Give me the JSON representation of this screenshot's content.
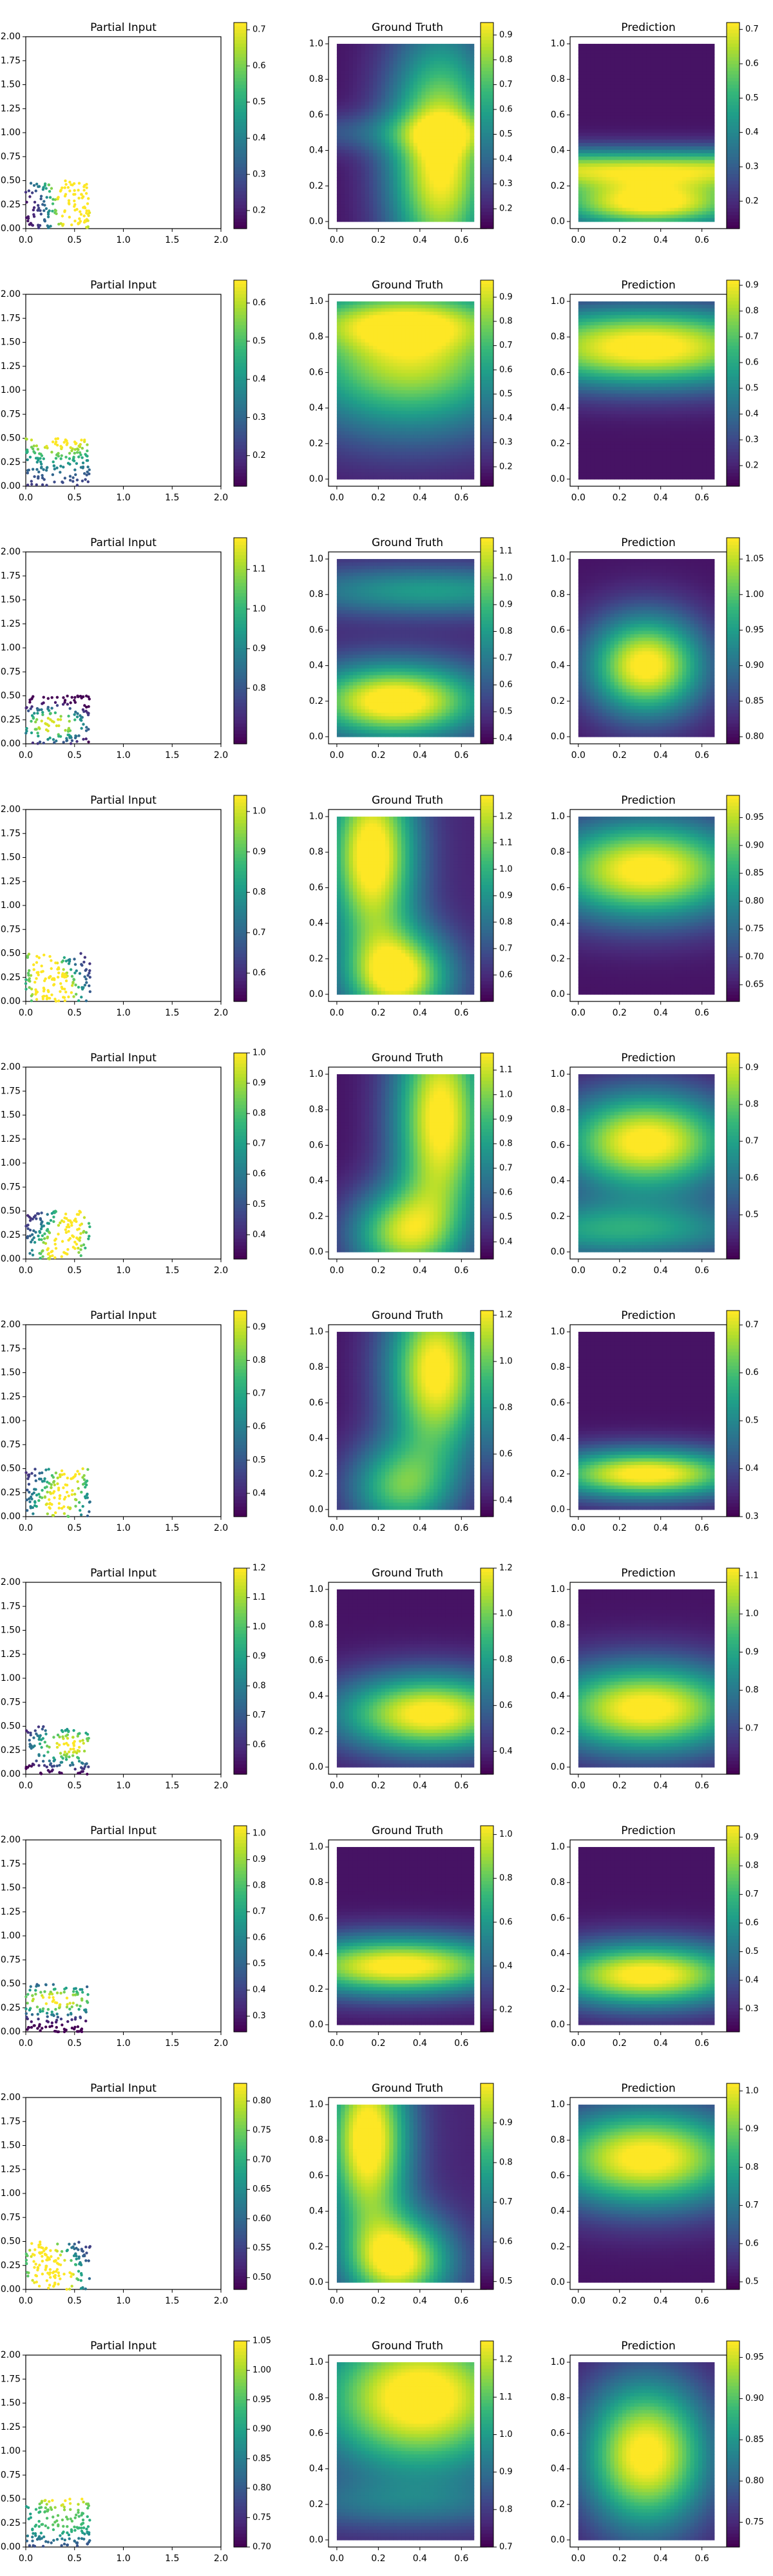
{
  "chart_data": {
    "type": "heatmap",
    "figure_layout": "10 rows x 3 panels: scatter + 2 heatmaps, each with colorbar",
    "colormap": "viridis",
    "colormap_stops": [
      "#440154",
      "#482878",
      "#3e4989",
      "#31688e",
      "#26828e",
      "#1f9e89",
      "#35b779",
      "#6ece58",
      "#b5de2b",
      "#fde725"
    ],
    "panel_titles": {
      "partial": "Partial Input",
      "truth": "Ground Truth",
      "prediction": "Prediction"
    },
    "partial_axes": {
      "xlim": [
        0,
        2
      ],
      "ylim": [
        0,
        2
      ],
      "xticks": [
        "0.0",
        "0.5",
        "1.0",
        "1.5",
        "2.0"
      ],
      "yticks": [
        "0.00",
        "0.25",
        "0.50",
        "0.75",
        "1.00",
        "1.25",
        "1.50",
        "1.75",
        "2.00"
      ],
      "scatter_region": {
        "x": [
          0,
          0.66
        ],
        "y": [
          0,
          0.5
        ]
      }
    },
    "heat_axes": {
      "xlim": [
        -0.04,
        0.72
      ],
      "ylim": [
        -0.04,
        1.04
      ],
      "xticks": [
        "0.0",
        "0.2",
        "0.4",
        "0.6"
      ],
      "yticks": [
        "0.0",
        "0.2",
        "0.4",
        "0.6",
        "0.8",
        "1.0"
      ]
    },
    "rows": [
      {
        "partial": {
          "range": [
            0.15,
            0.72
          ],
          "ticks": [
            "0.2",
            "0.3",
            "0.4",
            "0.5",
            "0.6",
            "0.7"
          ]
        },
        "truth": {
          "range": [
            0.12,
            0.95
          ],
          "ticks": [
            "0.2",
            "0.3",
            "0.4",
            "0.5",
            "0.6",
            "0.7",
            "0.8",
            "0.9"
          ],
          "field": [
            [
              0.05,
              0.5,
              0.35,
              1.0,
              0.18,
              0.2,
              0.8
            ],
            [
              0.5,
              0.5,
              0.4,
              0.0,
              0.35,
              0.4,
              0.2
            ]
          ]
        },
        "prediction": {
          "range": [
            0.12,
            0.72
          ],
          "ticks": [
            "0.1",
            "0.2",
            "0.3",
            "0.4",
            "0.5",
            "0.6",
            "0.7"
          ],
          "field": [
            [
              0.05,
              0.35,
              0.1,
              1.0,
              0.35,
              0.1,
              0.0
            ],
            [
              0.85,
              0.3,
              0.88,
              0.0,
              0.5,
              0.18,
              0.8
            ]
          ]
        }
      },
      {
        "partial": {
          "range": [
            0.12,
            0.66
          ],
          "ticks": [
            "0.2",
            "0.3",
            "0.4",
            "0.5",
            "0.6"
          ]
        },
        "truth": {
          "range": [
            0.12,
            0.97
          ],
          "ticks": [
            "0.2",
            "0.3",
            "0.4",
            "0.5",
            "0.6",
            "0.7",
            "0.8",
            "0.9"
          ],
          "field": [
            [
              0.05,
              0.35,
              0.7,
              0.9,
              0.4,
              0.15,
              0.3
            ],
            [
              0.25,
              0.3,
              0.88,
              0.35,
              0.5,
              0.1,
              0.0
            ]
          ]
        },
        "prediction": {
          "range": [
            0.12,
            0.92
          ],
          "ticks": [
            "0.2",
            "0.3",
            "0.4",
            "0.5",
            "0.6",
            "0.7",
            "0.8",
            "0.9"
          ],
          "field": [
            [
              0.05,
              0.33,
              0.72,
              0.95,
              0.5,
              0.15,
              0.0
            ],
            [
              0.3,
              0.33,
              0.88,
              0.2,
              0.5,
              0.1,
              0.0
            ]
          ]
        }
      },
      {
        "partial": {
          "range": [
            0.66,
            1.18
          ],
          "ticks": [
            "0.8",
            "0.9",
            "1.0",
            "1.1"
          ]
        },
        "truth": {
          "range": [
            0.38,
            1.15
          ],
          "ticks": [
            "0.4",
            "0.5",
            "0.6",
            "0.7",
            "0.8",
            "0.9",
            "1.0",
            "1.1"
          ],
          "field": [
            [
              0.1,
              0.28,
              0.2,
              1.0,
              0.3,
              0.15,
              0.0
            ],
            [
              0.45,
              0.1,
              0.82,
              0.5,
              0.5,
              0.1,
              0.0
            ]
          ]
        },
        "prediction": {
          "range": [
            0.79,
            1.08
          ],
          "ticks": [
            "0.80",
            "0.85",
            "0.90",
            "0.95",
            "1.00",
            "1.05"
          ],
          "field": [
            [
              0.05,
              0.33,
              0.4,
              1.0,
              0.2,
              0.2,
              0.0
            ],
            [
              0.5,
              0.5,
              0.5,
              0.0,
              0.5,
              0.1,
              0.0
            ]
          ]
        }
      },
      {
        "partial": {
          "range": [
            0.53,
            1.04
          ],
          "ticks": [
            "0.6",
            "0.7",
            "0.8",
            "0.9",
            "1.0"
          ]
        },
        "truth": {
          "range": [
            0.5,
            1.28
          ],
          "ticks": [
            "0.6",
            "0.7",
            "0.8",
            "0.9",
            "1.0",
            "1.1",
            "1.2"
          ],
          "field": [
            [
              0.1,
              0.17,
              0.78,
              1.0,
              0.15,
              0.15,
              0.45
            ],
            [
              0.3,
              0.55,
              0.1,
              1.0,
              0.18,
              0.18,
              0.0
            ]
          ]
        },
        "prediction": {
          "range": [
            0.62,
            0.99
          ],
          "ticks": [
            "0.65",
            "0.70",
            "0.75",
            "0.80",
            "0.85",
            "0.90",
            "0.95"
          ],
          "field": [
            [
              0.05,
              0.33,
              0.7,
              1.0,
              0.35,
              0.2,
              0.0
            ],
            [
              0.5,
              0.5,
              0.5,
              0.0,
              0.5,
              0.1,
              0.0
            ]
          ]
        }
      },
      {
        "partial": {
          "range": [
            0.32,
            1.0
          ],
          "ticks": [
            "0.4",
            "0.5",
            "0.6",
            "0.7",
            "0.8",
            "0.9",
            "1.0"
          ]
        },
        "truth": {
          "range": [
            0.33,
            1.17
          ],
          "ticks": [
            "0.4",
            "0.5",
            "0.6",
            "0.7",
            "0.8",
            "0.9",
            "1.0",
            "1.1"
          ],
          "field": [
            [
              0.05,
              0.5,
              0.75,
              1.0,
              0.16,
              0.25,
              0.6
            ],
            [
              0.3,
              0.15,
              0.1,
              0.8,
              0.18,
              0.18,
              0.0
            ]
          ]
        },
        "prediction": {
          "range": [
            0.38,
            0.94
          ],
          "ticks": [
            "0.5",
            "0.6",
            "0.7",
            "0.8",
            "0.9"
          ],
          "field": [
            [
              0.05,
              0.33,
              0.62,
              1.0,
              0.3,
              0.2,
              0.0
            ],
            [
              0.2,
              0.3,
              0.12,
              0.6,
              0.5,
              0.12,
              0.0
            ]
          ]
        }
      },
      {
        "partial": {
          "range": [
            0.33,
            0.95
          ],
          "ticks": [
            "0.4",
            "0.5",
            "0.6",
            "0.7",
            "0.8",
            "0.9"
          ]
        },
        "truth": {
          "range": [
            0.33,
            1.22
          ],
          "ticks": [
            "0.4",
            "0.6",
            "0.8",
            "1.0",
            "1.2"
          ],
          "field": [
            [
              0.05,
              0.48,
              0.78,
              1.0,
              0.17,
              0.17,
              0.4
            ],
            [
              0.3,
              0.15,
              0.12,
              0.7,
              0.18,
              0.18,
              0.0
            ]
          ]
        },
        "prediction": {
          "range": [
            0.3,
            0.73
          ],
          "ticks": [
            "0.3",
            "0.4",
            "0.5",
            "0.6",
            "0.7"
          ],
          "field": [
            [
              0.05,
              0.33,
              0.2,
              1.0,
              0.35,
              0.1,
              0.0
            ],
            [
              0.5,
              0.5,
              0.5,
              0.0,
              0.5,
              0.1,
              0.0
            ]
          ]
        }
      },
      {
        "partial": {
          "range": [
            0.5,
            1.2
          ],
          "ticks": [
            "0.6",
            "0.7",
            "0.8",
            "0.9",
            "1.0",
            "1.1",
            "1.2"
          ]
        },
        "truth": {
          "range": [
            0.3,
            1.2
          ],
          "ticks": [
            "0.4",
            "0.6",
            "0.8",
            "1.0",
            "1.2"
          ],
          "field": [
            [
              0.05,
              0.45,
              0.3,
              1.0,
              0.32,
              0.16,
              0.0
            ],
            [
              0.5,
              0.5,
              0.5,
              0.0,
              0.5,
              0.1,
              0.0
            ]
          ]
        },
        "prediction": {
          "range": [
            0.58,
            1.12
          ],
          "ticks": [
            "0.7",
            "0.8",
            "0.9",
            "1.0",
            "1.1"
          ],
          "field": [
            [
              0.05,
              0.33,
              0.33,
              1.0,
              0.35,
              0.18,
              0.0
            ],
            [
              0.5,
              0.5,
              0.5,
              0.0,
              0.5,
              0.1,
              0.0
            ]
          ]
        }
      },
      {
        "partial": {
          "range": [
            0.24,
            1.03
          ],
          "ticks": [
            "0.3",
            "0.4",
            "0.5",
            "0.6",
            "0.7",
            "0.8",
            "0.9",
            "1.0"
          ]
        },
        "truth": {
          "range": [
            0.1,
            1.04
          ],
          "ticks": [
            "0.2",
            "0.4",
            "0.6",
            "0.8",
            "1.0"
          ],
          "field": [
            [
              0.05,
              0.3,
              0.33,
              1.0,
              0.4,
              0.12,
              0.0
            ],
            [
              0.5,
              0.5,
              0.5,
              0.0,
              0.5,
              0.1,
              0.0
            ]
          ]
        },
        "prediction": {
          "range": [
            0.22,
            0.94
          ],
          "ticks": [
            "0.3",
            "0.4",
            "0.5",
            "0.6",
            "0.7",
            "0.8",
            "0.9"
          ],
          "field": [
            [
              0.05,
              0.33,
              0.28,
              1.0,
              0.35,
              0.13,
              0.0
            ],
            [
              0.5,
              0.5,
              0.5,
              0.0,
              0.5,
              0.1,
              0.0
            ]
          ]
        }
      },
      {
        "partial": {
          "range": [
            0.48,
            0.83
          ],
          "ticks": [
            "0.50",
            "0.55",
            "0.60",
            "0.65",
            "0.70",
            "0.75",
            "0.80"
          ]
        },
        "truth": {
          "range": [
            0.48,
            1.0
          ],
          "ticks": [
            "0.5",
            "0.6",
            "0.7",
            "0.8",
            "0.9"
          ],
          "field": [
            [
              0.1,
              0.15,
              0.8,
              1.0,
              0.14,
              0.14,
              0.45
            ],
            [
              0.3,
              0.55,
              0.12,
              1.0,
              0.18,
              0.18,
              0.0
            ]
          ]
        },
        "prediction": {
          "range": [
            0.48,
            1.02
          ],
          "ticks": [
            "0.5",
            "0.6",
            "0.7",
            "0.8",
            "0.9",
            "1.0"
          ],
          "field": [
            [
              0.05,
              0.33,
              0.7,
              1.0,
              0.35,
              0.2,
              0.0
            ],
            [
              0.5,
              0.5,
              0.5,
              0.0,
              0.5,
              0.1,
              0.0
            ]
          ]
        }
      },
      {
        "partial": {
          "range": [
            0.7,
            1.05
          ],
          "ticks": [
            "0.70",
            "0.75",
            "0.80",
            "0.85",
            "0.90",
            "0.95",
            "1.00",
            "1.05"
          ]
        },
        "truth": {
          "range": [
            0.7,
            1.25
          ],
          "ticks": [
            "0.7",
            "0.8",
            "0.9",
            "1.0",
            "1.1",
            "1.2"
          ],
          "field": [
            [
              0.1,
              0.4,
              0.8,
              1.0,
              0.35,
              0.3,
              0.0
            ],
            [
              0.3,
              0.5,
              0.2,
              0.25,
              0.5,
              0.1,
              0.0
            ]
          ]
        },
        "prediction": {
          "range": [
            0.72,
            0.97
          ],
          "ticks": [
            "0.75",
            "0.80",
            "0.85",
            "0.90",
            "0.95"
          ],
          "field": [
            [
              0.05,
              0.33,
              0.48,
              1.0,
              0.22,
              0.3,
              0.0
            ],
            [
              0.5,
              0.5,
              0.5,
              0.0,
              0.5,
              0.1,
              0.0
            ]
          ]
        }
      }
    ]
  }
}
